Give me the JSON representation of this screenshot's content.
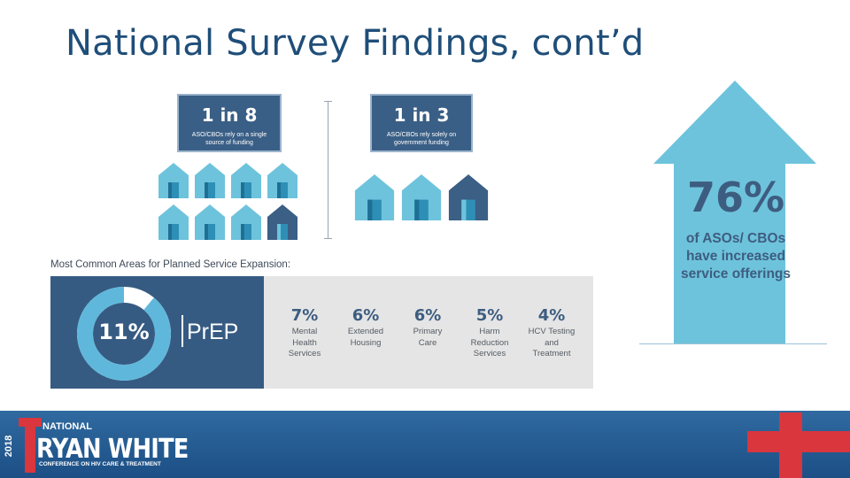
{
  "title": "National Survey Findings, cont’d",
  "stats": [
    {
      "value": "1 in 8",
      "desc": "ASO/CBOs rely on a single source of funding"
    },
    {
      "value": "1 in 3",
      "desc": "ASO/CBOs rely solely on government funding"
    }
  ],
  "colors": {
    "house_light": "#6ec3dc",
    "house_dark": "#3b5f85",
    "navy": "#365b83",
    "accent_red": "#d9363e"
  },
  "arrow": {
    "percent": "76%",
    "description": "of ASOs/ CBOs have increased service offerings"
  },
  "expansion": {
    "title": "Most Common Areas for Planned Service Expansion:",
    "featured": {
      "percent": "11%",
      "label": "PrEP",
      "share": 0.89
    },
    "items": [
      {
        "pct": "7%",
        "label": "Mental Health Services"
      },
      {
        "pct": "6%",
        "label": "Extended Housing"
      },
      {
        "pct": "6%",
        "label": "Primary Care"
      },
      {
        "pct": "5%",
        "label": "Harm Reduction Services"
      },
      {
        "pct": "4%",
        "label": "HCV Testing and Treatment"
      }
    ]
  },
  "footer": {
    "year": "2018",
    "national": "NATIONAL",
    "name": "RYAN WHITE",
    "subtitle": "CONFERENCE ON HIV CARE & TREATMENT"
  }
}
